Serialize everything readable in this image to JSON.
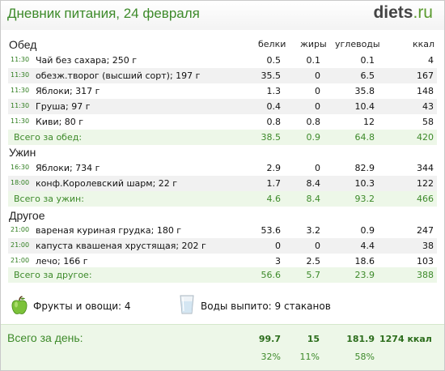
{
  "header": {
    "title": "Дневник питания, 24 февраля",
    "brand_main": "diets",
    "brand_tld": ".ru"
  },
  "columns": {
    "protein": "белки",
    "fat": "жиры",
    "carbs": "углеводы",
    "kcal": "ккал"
  },
  "sections": [
    {
      "title": "Обед",
      "items": [
        {
          "time": "11:30",
          "name": "Чай без сахара; 250 г",
          "protein": "0.5",
          "fat": "0.1",
          "carbs": "0.1",
          "kcal": "4"
        },
        {
          "time": "11:30",
          "name": "обезж.творог (высший сорт); 197 г",
          "protein": "35.5",
          "fat": "0",
          "carbs": "6.5",
          "kcal": "167"
        },
        {
          "time": "11:30",
          "name": "Яблоки; 317 г",
          "protein": "1.3",
          "fat": "0",
          "carbs": "35.8",
          "kcal": "148"
        },
        {
          "time": "11:30",
          "name": "Груша; 97 г",
          "protein": "0.4",
          "fat": "0",
          "carbs": "10.4",
          "kcal": "43"
        },
        {
          "time": "11:30",
          "name": "Киви; 80 г",
          "protein": "0.8",
          "fat": "0.8",
          "carbs": "12",
          "kcal": "58"
        }
      ],
      "total": {
        "label": "Всего за обед:",
        "protein": "38.5",
        "fat": "0.9",
        "carbs": "64.8",
        "kcal": "420"
      }
    },
    {
      "title": "Ужин",
      "items": [
        {
          "time": "16:30",
          "name": "Яблоки; 734 г",
          "protein": "2.9",
          "fat": "0",
          "carbs": "82.9",
          "kcal": "344"
        },
        {
          "time": "18:00",
          "name": "конф.Королевский шарм; 22 г",
          "protein": "1.7",
          "fat": "8.4",
          "carbs": "10.3",
          "kcal": "122"
        }
      ],
      "total": {
        "label": "Всего за ужин:",
        "protein": "4.6",
        "fat": "8.4",
        "carbs": "93.2",
        "kcal": "466"
      }
    },
    {
      "title": "Другое",
      "items": [
        {
          "time": "21:00",
          "name": "вареная куриная грудка; 180 г",
          "protein": "53.6",
          "fat": "3.2",
          "carbs": "0.9",
          "kcal": "247"
        },
        {
          "time": "21:00",
          "name": "капуста квашеная хрустящая; 202 г",
          "protein": "0",
          "fat": "0",
          "carbs": "4.4",
          "kcal": "38"
        },
        {
          "time": "21:00",
          "name": "лечо; 166 г",
          "protein": "3",
          "fat": "2.5",
          "carbs": "18.6",
          "kcal": "103"
        }
      ],
      "total": {
        "label": "Всего за другое:",
        "protein": "56.6",
        "fat": "5.7",
        "carbs": "23.9",
        "kcal": "388"
      }
    }
  ],
  "extras": {
    "fruits_label": "Фрукты и овощи: 4",
    "fruits_icon": "green-apple-icon",
    "water_label": "Воды выпито: 9 стаканов",
    "water_icon": "water-glass-icon"
  },
  "day_total": {
    "label": "Всего за день:",
    "protein": "99.7",
    "fat": "15",
    "carbs": "181.9",
    "kcal": "1274 ккал",
    "protein_pct": "32%",
    "fat_pct": "11%",
    "carbs_pct": "58%"
  },
  "colors": {
    "accent_green": "#3d8a2a",
    "total_bg": "#edf7e8",
    "alt_row_bg": "#f1f1f1"
  }
}
